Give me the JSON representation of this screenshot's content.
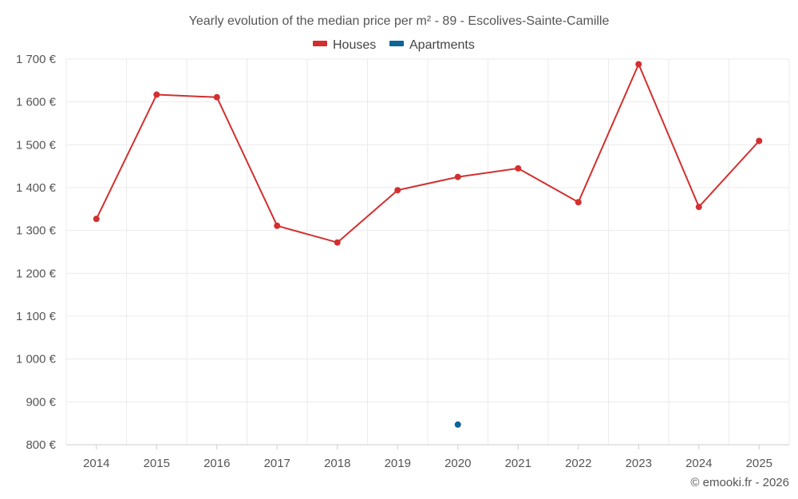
{
  "chart_data": {
    "type": "line",
    "title": "Yearly evolution of the median price per m² - 89 - Escolives-Sainte-Camille",
    "categories": [
      "2014",
      "2015",
      "2016",
      "2017",
      "2018",
      "2019",
      "2020",
      "2021",
      "2022",
      "2023",
      "2024",
      "2025"
    ],
    "series": [
      {
        "name": "Houses",
        "color": "#d32f2f",
        "values": [
          1327,
          1617,
          1611,
          1311,
          1272,
          1394,
          1425,
          1445,
          1366,
          1688,
          1355,
          1509
        ]
      },
      {
        "name": "Apartments",
        "color": "#0d6496",
        "values": [
          null,
          null,
          null,
          null,
          null,
          null,
          847,
          null,
          null,
          null,
          null,
          null
        ]
      }
    ],
    "ylim": [
      800,
      1700
    ],
    "yticks": [
      800,
      900,
      1000,
      1100,
      1200,
      1300,
      1400,
      1500,
      1600,
      1700
    ],
    "ytick_labels": [
      "800 €",
      "900 €",
      "1 000 €",
      "1 100 €",
      "1 200 €",
      "1 300 €",
      "1 400 €",
      "1 500 €",
      "1 600 €",
      "1 700 €"
    ],
    "xlabel": "",
    "ylabel": "",
    "grid": true,
    "legend": "top-center"
  },
  "credit": "© emooki.fr - 2026"
}
